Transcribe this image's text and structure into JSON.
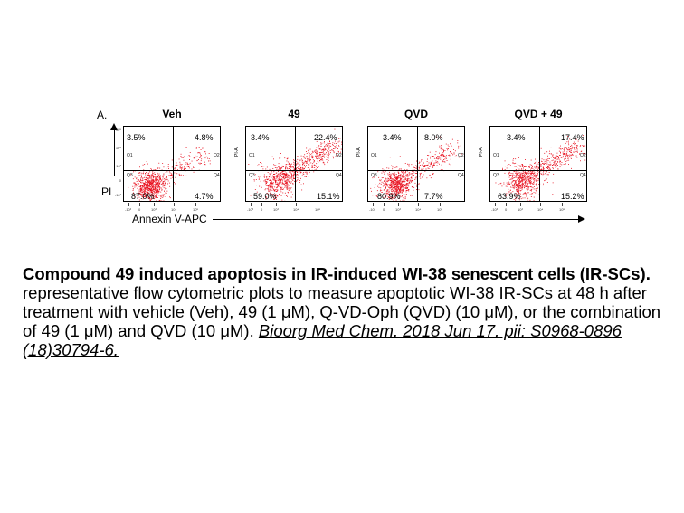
{
  "figure": {
    "panel_letter": "A.",
    "y_axis_label": "PI",
    "x_axis_label": "Annexin V-APC",
    "point_color": "#e8101e",
    "quadrant_tags": [
      "Q1",
      "Q2",
      "Q3",
      "Q4"
    ],
    "panels": [
      {
        "title": "Veh",
        "q_upper_left": "3.5%",
        "q_upper_right": "4.8%",
        "q_lower_left": "87.0%",
        "q_lower_right": "4.7%"
      },
      {
        "title": "49",
        "q_upper_left": "3.4%",
        "q_upper_right": "22.4%",
        "q_lower_left": "59.0%",
        "q_lower_right": "15.1%"
      },
      {
        "title": "QVD",
        "q_upper_left": "3.4%",
        "q_upper_right": "8.0%",
        "q_lower_left": "80.9%",
        "q_lower_right": "7.7%"
      },
      {
        "title": "QVD + 49",
        "q_upper_left": "3.4%",
        "q_upper_right": "17.4%",
        "q_lower_left": "63.9%",
        "q_lower_right": "15.2%"
      }
    ],
    "y_tick_labels": [
      "10⁵",
      "10⁴",
      "10³",
      "0",
      "-10³"
    ],
    "x_tick_labels": [
      "-10³",
      "0",
      "10³",
      "10⁴",
      "10⁵"
    ],
    "y_title_small": "PI-A"
  },
  "caption": {
    "title": "Compound 49 induced apoptosis in IR-induced WI-38 senescent cells (IR-SCs).",
    "body": "representative flow cytometric plots to measure apoptotic WI-38 IR-SCs at 48 h after treatment with vehicle (Veh), 49 (1 μM), Q-VD-Oph (QVD) (10 μM), or the combination of 49 (1 μM) and QVD (10 μM).",
    "citation": "Bioorg Med Chem. 2018 Jun 17. pii: S0968-0896 (18)30794-6."
  }
}
